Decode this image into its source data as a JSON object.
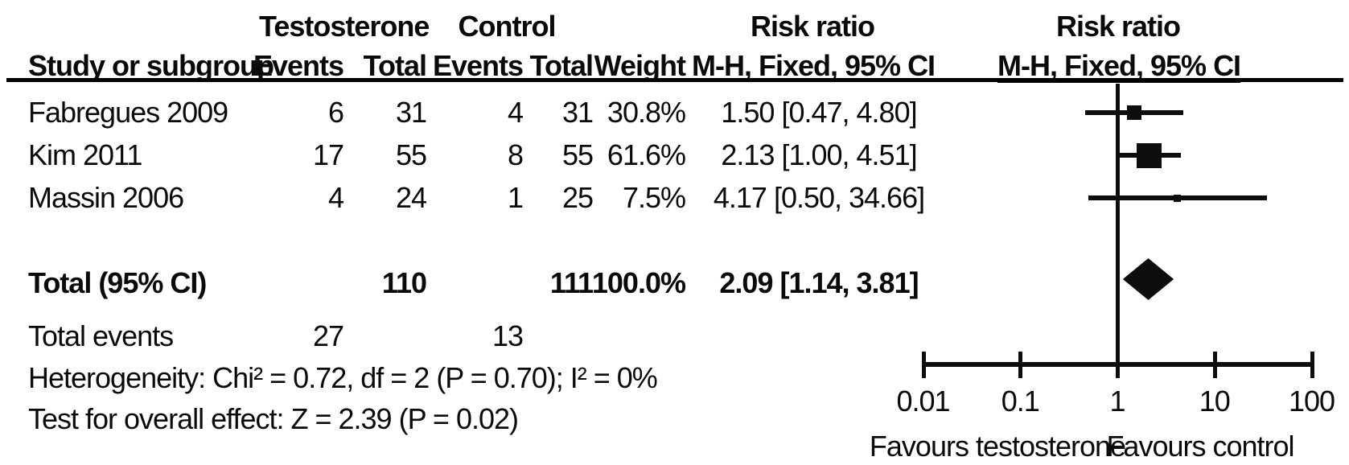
{
  "header": {
    "group_testosterone": "Testosterone",
    "group_control": "Control",
    "risk_ratio_stat_title": "Risk ratio",
    "risk_ratio_plot_title": "Risk ratio",
    "col_study": "Study or subgroup",
    "col_events_t": "Events",
    "col_total_t": "Total",
    "col_events_c": "Events",
    "col_total_c": "Total",
    "col_weight": "Weight",
    "col_mh_stat": "M-H, Fixed, 95% CI",
    "col_mh_plot": "M-H, Fixed, 95% CI"
  },
  "studies": [
    {
      "name": "Fabregues 2009",
      "events_t": "6",
      "total_t": "31",
      "events_c": "4",
      "total_c": "31",
      "weight": "30.8%",
      "rr_text": "1.50 [0.47, 4.80]"
    },
    {
      "name": "Kim 2011",
      "events_t": "17",
      "total_t": "55",
      "events_c": "8",
      "total_c": "55",
      "weight": "61.6%",
      "rr_text": "2.13 [1.00, 4.51]"
    },
    {
      "name": "Massin 2006",
      "events_t": "4",
      "total_t": "24",
      "events_c": "1",
      "total_c": "25",
      "weight": "7.5%",
      "rr_text": "4.17 [0.50, 34.66]"
    }
  ],
  "total_row": {
    "label": "Total (95% CI)",
    "total_t": "110",
    "total_c": "111",
    "weight": "100.0%",
    "rr_text": "2.09 [1.14, 3.81]"
  },
  "total_events_row": {
    "label": "Total events",
    "events_t": "27",
    "events_c": "13"
  },
  "footnotes": {
    "heterogeneity": "Heterogeneity: Chi² = 0.72, df = 2 (P = 0.70); I² = 0%",
    "overall_effect": "Test for overall effect: Z = 2.39 (P = 0.02)"
  },
  "axis": {
    "tick_labels": [
      "0.01",
      "0.1",
      "1",
      "10",
      "100"
    ],
    "favours_left": "Favours testosterone",
    "favours_right": "Favours control"
  },
  "colors": {
    "ink": "#0d0d0d",
    "background": "#ffffff"
  },
  "chart_data": {
    "type": "forest",
    "effect_measure": "Risk ratio (M-H, Fixed, 95% CI)",
    "x_scale": "log10",
    "x_ticks": [
      0.01,
      0.1,
      1,
      10,
      100
    ],
    "x_range": [
      0.01,
      100
    ],
    "null_line": 1,
    "legend_left": "Favours testosterone",
    "legend_right": "Favours control",
    "studies": [
      {
        "name": "Fabregues 2009",
        "rr": 1.5,
        "ci_low": 0.47,
        "ci_high": 4.8,
        "weight_pct": 30.8
      },
      {
        "name": "Kim 2011",
        "rr": 2.13,
        "ci_low": 1.0,
        "ci_high": 4.51,
        "weight_pct": 61.6
      },
      {
        "name": "Massin 2006",
        "rr": 4.17,
        "ci_low": 0.5,
        "ci_high": 34.66,
        "weight_pct": 7.5
      }
    ],
    "total": {
      "rr": 2.09,
      "ci_low": 1.14,
      "ci_high": 3.81,
      "weight_pct": 100.0
    },
    "heterogeneity": {
      "chi2": 0.72,
      "df": 2,
      "p": 0.7,
      "i2_pct": 0
    },
    "overall_effect": {
      "z": 2.39,
      "p": 0.02
    }
  }
}
